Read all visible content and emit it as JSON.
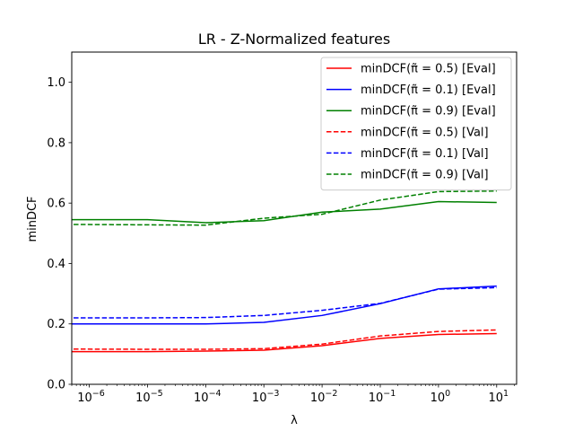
{
  "chart_data": {
    "type": "line",
    "title": "LR - Z-Normalized features",
    "xlabel": "λ",
    "ylabel": "minDCF",
    "xscale": "log",
    "xlim": [
      5e-07,
      22
    ],
    "ylim": [
      0,
      1.1
    ],
    "grid": false,
    "legend_position": "top-right",
    "x_ticks": [
      {
        "value": 1e-06,
        "base": "10",
        "exp": "−6"
      },
      {
        "value": 1e-05,
        "base": "10",
        "exp": "−5"
      },
      {
        "value": 0.0001,
        "base": "10",
        "exp": "−4"
      },
      {
        "value": 0.001,
        "base": "10",
        "exp": "−3"
      },
      {
        "value": 0.01,
        "base": "10",
        "exp": "−2"
      },
      {
        "value": 0.1,
        "base": "10",
        "exp": "−1"
      },
      {
        "value": 1,
        "base": "10",
        "exp": "0"
      },
      {
        "value": 10,
        "base": "10",
        "exp": "1"
      }
    ],
    "y_ticks": [
      {
        "value": 0.0,
        "label": "0.0"
      },
      {
        "value": 0.2,
        "label": "0.2"
      },
      {
        "value": 0.4,
        "label": "0.4"
      },
      {
        "value": 0.6,
        "label": "0.6"
      },
      {
        "value": 0.8,
        "label": "0.8"
      },
      {
        "value": 1.0,
        "label": "1.0"
      }
    ],
    "x": [
      1e-07,
      1e-05,
      0.0001,
      0.001,
      0.01,
      0.1,
      1,
      10
    ],
    "series": [
      {
        "name": "minDCF(π̃ = 0.5) [Eval]",
        "color": "#ff0000",
        "dash": "solid",
        "values": [
          0.108,
          0.108,
          0.11,
          0.113,
          0.128,
          0.152,
          0.165,
          0.168
        ]
      },
      {
        "name": "minDCF(π̃ = 0.1) [Eval]",
        "color": "#0000ff",
        "dash": "solid",
        "values": [
          0.2,
          0.2,
          0.2,
          0.205,
          0.228,
          0.267,
          0.316,
          0.325
        ]
      },
      {
        "name": "minDCF(π̃ = 0.9) [Eval]",
        "color": "#008000",
        "dash": "solid",
        "values": [
          0.545,
          0.545,
          0.535,
          0.542,
          0.57,
          0.58,
          0.605,
          0.602
        ]
      },
      {
        "name": "minDCF(π̃ = 0.5) [Val]",
        "color": "#ff0000",
        "dash": "dashed",
        "values": [
          0.117,
          0.116,
          0.116,
          0.118,
          0.133,
          0.16,
          0.175,
          0.18
        ]
      },
      {
        "name": "minDCF(π̃ = 0.1) [Val]",
        "color": "#0000ff",
        "dash": "dashed",
        "values": [
          0.22,
          0.22,
          0.221,
          0.228,
          0.245,
          0.268,
          0.315,
          0.32
        ]
      },
      {
        "name": "minDCF(π̃ = 0.9) [Val]",
        "color": "#008000",
        "dash": "dashed",
        "values": [
          0.53,
          0.528,
          0.527,
          0.55,
          0.563,
          0.61,
          0.638,
          0.64
        ]
      }
    ]
  }
}
